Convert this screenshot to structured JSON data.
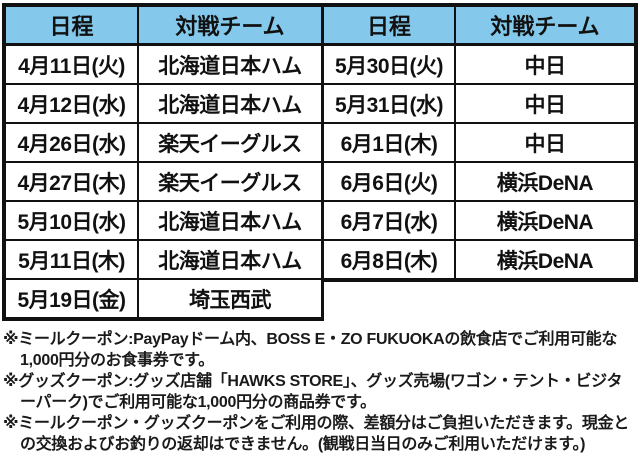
{
  "colors": {
    "header_bg": "#84c9ec",
    "border": "#111111",
    "text": "#111111"
  },
  "schedule": {
    "left": {
      "headers": [
        "日程",
        "対戦チーム"
      ],
      "rows": [
        [
          "4月11日(火)",
          "北海道日本ハム"
        ],
        [
          "4月12日(水)",
          "北海道日本ハム"
        ],
        [
          "4月26日(水)",
          "楽天イーグルス"
        ],
        [
          "4月27日(木)",
          "楽天イーグルス"
        ],
        [
          "5月10日(水)",
          "北海道日本ハム"
        ],
        [
          "5月11日(木)",
          "北海道日本ハム"
        ],
        [
          "5月19日(金)",
          "埼玉西武"
        ]
      ]
    },
    "right": {
      "headers": [
        "日程",
        "対戦チーム"
      ],
      "rows": [
        [
          "5月30日(火)",
          "中日"
        ],
        [
          "5月31日(水)",
          "中日"
        ],
        [
          "6月1日(木)",
          "中日"
        ],
        [
          "6月6日(火)",
          "横浜DeNA"
        ],
        [
          "6月7日(水)",
          "横浜DeNA"
        ],
        [
          "6月8日(木)",
          "横浜DeNA"
        ]
      ]
    }
  },
  "footnotes": [
    "※ミールクーポン:PayPayドーム内、BOSS E・ZO FUKUOKAの飲食店でご利用可能な1,000円分のお食事券です。",
    "※グッズクーポン:グッズ店舗「HAWKS STORE」、グッズ売場(ワゴン・テント・ビジターパーク)でご利用可能な1,000円分の商品券です。",
    "※ミールクーポン・グッズクーポンをご利用の際、差額分はご負担いただきます。現金との交換およびお釣りの返却はできません。(観戦日当日のみご利用いただけます。)"
  ]
}
